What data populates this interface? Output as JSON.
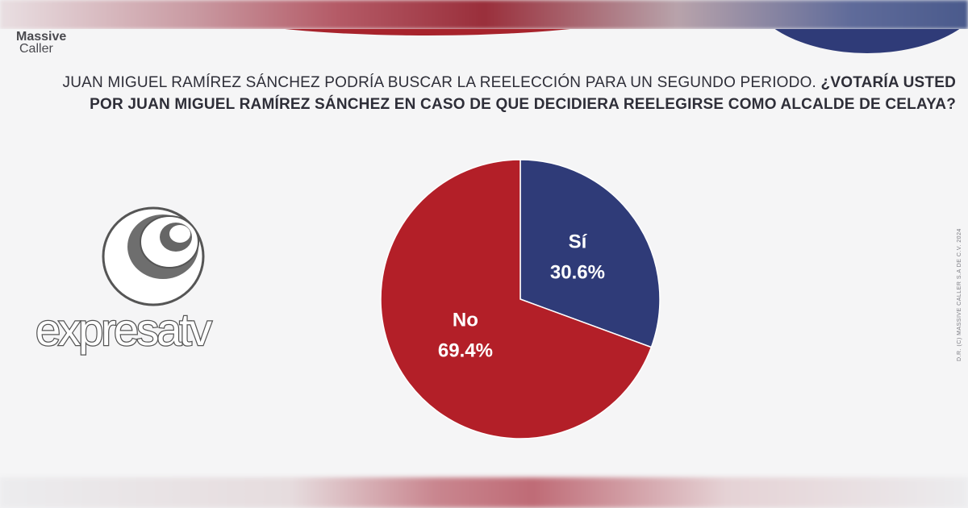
{
  "brand": {
    "massive_caller": {
      "line1": "Massive",
      "line2": "Caller"
    },
    "expresatv": "expresatv",
    "credit": "D.R. (C) MASSIVE CALLER S.A DE C.V. 2024"
  },
  "question": {
    "normal": "JUAN MIGUEL RAMÍREZ SÁNCHEZ PODRÍA BUSCAR LA REELECCIÓN PARA UN SEGUNDO PERIODO.",
    "bold_line1": "¿VOTARÍA USTED",
    "bold_line2": "POR JUAN MIGUEL RAMÍREZ SÁNCHEZ EN CASO DE QUE DECIDIERA REELEGIRSE COMO ALCALDE DE CELAYA?"
  },
  "colors": {
    "si": "#2f3b78",
    "no": "#b31f28",
    "accent_red": "#a7232c"
  },
  "chart_data": {
    "type": "pie",
    "title": "",
    "slices": [
      {
        "label": "Sí",
        "value": 30.6,
        "display": "30.6%",
        "color": "#2f3b78"
      },
      {
        "label": "No",
        "value": 69.4,
        "display": "69.4%",
        "color": "#b31f28"
      }
    ],
    "start": "12 o'clock",
    "direction": "clockwise",
    "legend": "none"
  }
}
